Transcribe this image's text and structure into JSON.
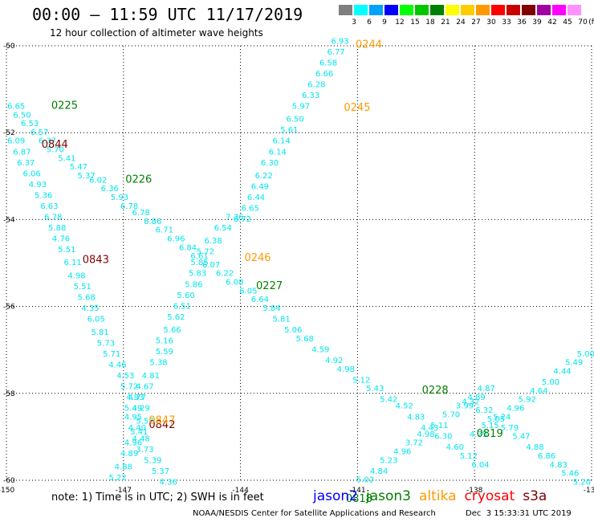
{
  "header": {
    "title": "00:00 – 11:59 UTC 11/17/2019",
    "subtitle": "12 hour collection of altimeter wave heights"
  },
  "legend": {
    "unit": "(ft)",
    "bins": [
      {
        "label": "3",
        "color": "#7f7f7f"
      },
      {
        "label": "6",
        "color": "#00ffff"
      },
      {
        "label": "9",
        "color": "#00a0ff"
      },
      {
        "label": "12",
        "color": "#0000ff"
      },
      {
        "label": "15",
        "color": "#00ff00"
      },
      {
        "label": "18",
        "color": "#00c800"
      },
      {
        "label": "21",
        "color": "#008000"
      },
      {
        "label": "24",
        "color": "#ffff00"
      },
      {
        "label": "27",
        "color": "#ffcc00"
      },
      {
        "label": "30",
        "color": "#ff9900"
      },
      {
        "label": "33",
        "color": "#ff0000"
      },
      {
        "label": "36",
        "color": "#c80000"
      },
      {
        "label": "39",
        "color": "#800000"
      },
      {
        "label": "42",
        "color": "#a000a0"
      },
      {
        "label": "45",
        "color": "#ff00ff"
      },
      {
        "label": "70",
        "color": "#ff90ff"
      }
    ]
  },
  "map": {
    "lon_ticks": [
      "-150",
      "-147",
      "-144",
      "-141",
      "-138",
      "-135"
    ],
    "lat_ticks": [
      "-50",
      "-52",
      "-54",
      "-56",
      "-58",
      "-60"
    ],
    "lon_range": [
      -150,
      -135
    ],
    "lat_range": [
      -60,
      -50
    ],
    "grid": "dotted"
  },
  "colors": {
    "swh": "#00e5ee",
    "jason2": "#0000ff",
    "jason3": "#008000",
    "altika": "#ff9900",
    "cryosat": "#ff0000",
    "s3a": "#800000"
  },
  "tracks": [
    {
      "name": "track-a",
      "points": [
        {
          "lon": -144.15,
          "lat": -54.0,
          "v": "7.36"
        },
        {
          "lon": -144.45,
          "lat": -54.25,
          "v": "6.54"
        },
        {
          "lon": -144.7,
          "lat": -54.55,
          "v": "6.38"
        },
        {
          "lon": -144.9,
          "lat": -54.8,
          "v": "5.72"
        },
        {
          "lon": -145.05,
          "lat": -55.05,
          "v": "5.85"
        },
        {
          "lon": -145.1,
          "lat": -55.3,
          "v": "5.83"
        },
        {
          "lon": -145.2,
          "lat": -55.55,
          "v": "5.86"
        },
        {
          "lon": -145.4,
          "lat": -55.8,
          "v": "5.60"
        },
        {
          "lon": -145.5,
          "lat": -56.05,
          "v": "6.51"
        },
        {
          "lon": -145.65,
          "lat": -56.3,
          "v": "5.62"
        },
        {
          "lon": -145.75,
          "lat": -56.6,
          "v": "5.66"
        },
        {
          "lon": -145.95,
          "lat": -56.85,
          "v": "5.16"
        },
        {
          "lon": -145.95,
          "lat": -57.1,
          "v": "5.59"
        },
        {
          "lon": -146.1,
          "lat": -57.35,
          "v": "5.38"
        },
        {
          "lon": -146.3,
          "lat": -57.65,
          "v": "4.81"
        },
        {
          "lon": -146.45,
          "lat": -57.9,
          "v": "4.67"
        },
        {
          "lon": -146.65,
          "lat": -58.15,
          "v": "4.77"
        },
        {
          "lon": -146.75,
          "lat": -58.4,
          "v": "5.49"
        },
        {
          "lon": -146.75,
          "lat": -58.6,
          "v": "4.95"
        },
        {
          "lon": -146.65,
          "lat": -58.85,
          "v": "4.40"
        },
        {
          "lon": -146.55,
          "lat": -59.1,
          "v": "4.48"
        },
        {
          "lon": -146.45,
          "lat": -59.35,
          "v": "3.73"
        },
        {
          "lon": -146.25,
          "lat": -59.6,
          "v": "5.39"
        },
        {
          "lon": -146.05,
          "lat": -59.85,
          "v": "5.37"
        },
        {
          "lon": -145.85,
          "lat": -60.1,
          "v": "4.36"
        }
      ]
    },
    {
      "name": "track-b",
      "points": [
        {
          "lon": -141.45,
          "lat": -49.95,
          "v": "6.93"
        },
        {
          "lon": -141.55,
          "lat": -50.2,
          "v": "6.77"
        },
        {
          "lon": -141.75,
          "lat": -50.45,
          "v": "6.58"
        },
        {
          "lon": -141.85,
          "lat": -50.7,
          "v": "6.66"
        },
        {
          "lon": -142.05,
          "lat": -50.95,
          "v": "6.28"
        },
        {
          "lon": -142.2,
          "lat": -51.2,
          "v": "6.33"
        },
        {
          "lon": -142.45,
          "lat": -51.45,
          "v": "5.97"
        },
        {
          "lon": -142.6,
          "lat": -51.75,
          "v": "6.50"
        },
        {
          "lon": -142.75,
          "lat": -52.0,
          "v": "5.61"
        },
        {
          "lon": -142.95,
          "lat": -52.25,
          "v": "6.14"
        },
        {
          "lon": -143.05,
          "lat": -52.5,
          "v": "6.14"
        },
        {
          "lon": -143.25,
          "lat": -52.75,
          "v": "6.30"
        },
        {
          "lon": -143.4,
          "lat": -53.05,
          "v": "6.22"
        },
        {
          "lon": -143.5,
          "lat": -53.3,
          "v": "6.49"
        },
        {
          "lon": -143.6,
          "lat": -53.55,
          "v": "6.44"
        },
        {
          "lon": -143.75,
          "lat": -53.8,
          "v": "6.65"
        },
        {
          "lon": -143.95,
          "lat": -54.05,
          "v": "6.72"
        }
      ]
    },
    {
      "name": "track-c",
      "points": [
        {
          "lon": -149.75,
          "lat": -51.45,
          "v": "6.65"
        },
        {
          "lon": -149.6,
          "lat": -51.65,
          "v": "6.50"
        },
        {
          "lon": -149.4,
          "lat": -51.85,
          "v": "6.53"
        },
        {
          "lon": -149.15,
          "lat": -52.05,
          "v": "6.57"
        },
        {
          "lon": -148.95,
          "lat": -52.25,
          "v": "6.37"
        },
        {
          "lon": -148.75,
          "lat": -52.45,
          "v": "5.70"
        },
        {
          "lon": -148.45,
          "lat": -52.65,
          "v": "5.41"
        },
        {
          "lon": -148.15,
          "lat": -52.85,
          "v": "5.47"
        },
        {
          "lon": -147.95,
          "lat": -53.05,
          "v": "5.37"
        },
        {
          "lon": -147.65,
          "lat": -53.15,
          "v": "6.02"
        },
        {
          "lon": -147.35,
          "lat": -53.35,
          "v": "6.36"
        },
        {
          "lon": -147.1,
          "lat": -53.55,
          "v": "5.93"
        },
        {
          "lon": -146.85,
          "lat": -53.75,
          "v": "6.78"
        },
        {
          "lon": -146.55,
          "lat": -53.9,
          "v": "6.78"
        },
        {
          "lon": -146.25,
          "lat": -54.1,
          "v": "6.86"
        },
        {
          "lon": -145.95,
          "lat": -54.3,
          "v": "6.71"
        },
        {
          "lon": -145.65,
          "lat": -54.5,
          "v": "6.96"
        },
        {
          "lon": -145.35,
          "lat": -54.7,
          "v": "6.84"
        },
        {
          "lon": -145.05,
          "lat": -54.9,
          "v": "6.61"
        },
        {
          "lon": -144.75,
          "lat": -55.1,
          "v": "6.07"
        },
        {
          "lon": -144.4,
          "lat": -55.3,
          "v": "6.22"
        },
        {
          "lon": -144.15,
          "lat": -55.5,
          "v": "6.08"
        },
        {
          "lon": -143.8,
          "lat": -55.7,
          "v": "6.05"
        },
        {
          "lon": -143.5,
          "lat": -55.9,
          "v": "6.64"
        },
        {
          "lon": -143.2,
          "lat": -56.1,
          "v": "5.84"
        },
        {
          "lon": -142.95,
          "lat": -56.35,
          "v": "5.81"
        },
        {
          "lon": -142.65,
          "lat": -56.6,
          "v": "5.06"
        },
        {
          "lon": -142.35,
          "lat": -56.8,
          "v": "5.68"
        },
        {
          "lon": -141.95,
          "lat": -57.05,
          "v": "4.59"
        },
        {
          "lon": -141.6,
          "lat": -57.3,
          "v": "4.92"
        },
        {
          "lon": -141.3,
          "lat": -57.5,
          "v": "4.98"
        },
        {
          "lon": -140.9,
          "lat": -57.75,
          "v": "5.12"
        },
        {
          "lon": -140.55,
          "lat": -57.95,
          "v": "5.43"
        },
        {
          "lon": -140.2,
          "lat": -58.2,
          "v": "5.42"
        },
        {
          "lon": -139.8,
          "lat": -58.35,
          "v": "4.52"
        },
        {
          "lon": -139.5,
          "lat": -58.6,
          "v": "4.83"
        },
        {
          "lon": -139.15,
          "lat": -58.85,
          "v": "4.43"
        },
        {
          "lon": -138.8,
          "lat": -59.05,
          "v": "6.30"
        },
        {
          "lon": -138.5,
          "lat": -59.3,
          "v": "4.60"
        },
        {
          "lon": -138.15,
          "lat": -59.5,
          "v": "5.12"
        },
        {
          "lon": -137.85,
          "lat": -59.7,
          "v": "6.04"
        }
      ]
    },
    {
      "name": "track-d",
      "points": [
        {
          "lon": -149.75,
          "lat": -52.25,
          "v": "6.09"
        },
        {
          "lon": -149.6,
          "lat": -52.5,
          "v": "6.87"
        },
        {
          "lon": -149.5,
          "lat": -52.75,
          "v": "6.37"
        },
        {
          "lon": -149.35,
          "lat": -53.0,
          "v": "6.06"
        },
        {
          "lon": -149.2,
          "lat": -53.25,
          "v": "4.93"
        },
        {
          "lon": -149.05,
          "lat": -53.5,
          "v": "5.36"
        },
        {
          "lon": -148.9,
          "lat": -53.75,
          "v": "6.63"
        },
        {
          "lon": -148.8,
          "lat": -54.0,
          "v": "6.78"
        },
        {
          "lon": -148.7,
          "lat": -54.25,
          "v": "5.88"
        },
        {
          "lon": -148.6,
          "lat": -54.5,
          "v": "4.76"
        },
        {
          "lon": -148.45,
          "lat": -54.75,
          "v": "5.51"
        },
        {
          "lon": -148.3,
          "lat": -55.05,
          "v": "6.11"
        },
        {
          "lon": -148.2,
          "lat": -55.35,
          "v": "4.98"
        },
        {
          "lon": -148.05,
          "lat": -55.6,
          "v": "5.51"
        },
        {
          "lon": -147.95,
          "lat": -55.85,
          "v": "5.68"
        },
        {
          "lon": -147.85,
          "lat": -56.1,
          "v": "4.35"
        },
        {
          "lon": -147.7,
          "lat": -56.35,
          "v": "6.05"
        },
        {
          "lon": -147.6,
          "lat": -56.65,
          "v": "5.81"
        },
        {
          "lon": -147.45,
          "lat": -56.9,
          "v": "5.73"
        },
        {
          "lon": -147.3,
          "lat": -57.15,
          "v": "5.71"
        },
        {
          "lon": -147.15,
          "lat": -57.4,
          "v": "4.46"
        },
        {
          "lon": -146.95,
          "lat": -57.65,
          "v": "4.53"
        },
        {
          "lon": -146.85,
          "lat": -57.9,
          "v": "5.72"
        },
        {
          "lon": -146.7,
          "lat": -58.15,
          "v": "4.93"
        },
        {
          "lon": -146.55,
          "lat": -58.4,
          "v": "4.29"
        },
        {
          "lon": -146.45,
          "lat": -58.7,
          "v": "5.57"
        },
        {
          "lon": -146.6,
          "lat": -58.95,
          "v": "5.41"
        },
        {
          "lon": -146.75,
          "lat": -59.2,
          "v": "4.96"
        },
        {
          "lon": -146.85,
          "lat": -59.45,
          "v": "4.89"
        },
        {
          "lon": -147.0,
          "lat": -59.75,
          "v": "4.88"
        },
        {
          "lon": -147.15,
          "lat": -60.0,
          "v": "5.22"
        },
        {
          "lon": -147.25,
          "lat": -60.25,
          "v": "5.11"
        },
        {
          "lon": -147.4,
          "lat": -60.55,
          "v": "5.03"
        }
      ]
    },
    {
      "name": "track-e",
      "points": [
        {
          "lon": -137.9,
          "lat": -59.0,
          "v": "4.75"
        },
        {
          "lon": -137.6,
          "lat": -58.8,
          "v": "5.15"
        },
        {
          "lon": -137.3,
          "lat": -58.6,
          "v": "5.24"
        },
        {
          "lon": -136.95,
          "lat": -58.4,
          "v": "4.96"
        },
        {
          "lon": -136.65,
          "lat": -58.2,
          "v": "5.92"
        },
        {
          "lon": -136.35,
          "lat": -58.0,
          "v": "4.64"
        },
        {
          "lon": -136.05,
          "lat": -57.8,
          "v": "5.00"
        },
        {
          "lon": -135.75,
          "lat": -57.55,
          "v": "4.44"
        },
        {
          "lon": -135.45,
          "lat": -57.35,
          "v": "5.49"
        },
        {
          "lon": -135.15,
          "lat": -57.15,
          "v": "5.00"
        },
        {
          "lon": -134.85,
          "lat": -56.95,
          "v": "5.33"
        },
        {
          "lon": -134.55,
          "lat": -56.75,
          "v": "4.74"
        },
        {
          "lon": -134.4,
          "lat": -56.55,
          "v": "5"
        }
      ]
    },
    {
      "name": "track-f",
      "points": [
        {
          "lon": -141.45,
          "lat": -60.45,
          "v": "4.94"
        },
        {
          "lon": -141.1,
          "lat": -60.25,
          "v": "5.27"
        },
        {
          "lon": -140.8,
          "lat": -60.05,
          "v": "5.02"
        },
        {
          "lon": -140.45,
          "lat": -59.85,
          "v": "4.84"
        },
        {
          "lon": -140.2,
          "lat": -59.6,
          "v": "5.23"
        },
        {
          "lon": -139.85,
          "lat": -59.4,
          "v": "4.96"
        },
        {
          "lon": -139.55,
          "lat": -59.2,
          "v": "3.72"
        },
        {
          "lon": -139.25,
          "lat": -59.0,
          "v": "4.98"
        },
        {
          "lon": -138.9,
          "lat": -58.8,
          "v": "5.11"
        },
        {
          "lon": -138.6,
          "lat": -58.55,
          "v": "5.70"
        },
        {
          "lon": -138.25,
          "lat": -58.35,
          "v": "3.99"
        },
        {
          "lon": -137.95,
          "lat": -58.15,
          "v": "4.89"
        },
        {
          "lon": -137.7,
          "lat": -57.95,
          "v": "4.87"
        }
      ]
    },
    {
      "name": "track-g",
      "points": [
        {
          "lon": -138.1,
          "lat": -58.25,
          "v": "4.32"
        },
        {
          "lon": -137.75,
          "lat": -58.45,
          "v": "6.32"
        },
        {
          "lon": -137.45,
          "lat": -58.65,
          "v": "5.05"
        },
        {
          "lon": -137.1,
          "lat": -58.85,
          "v": "5.79"
        },
        {
          "lon": -136.8,
          "lat": -59.05,
          "v": "5.47"
        },
        {
          "lon": -136.45,
          "lat": -59.3,
          "v": "4.88"
        },
        {
          "lon": -136.15,
          "lat": -59.5,
          "v": "6.86"
        },
        {
          "lon": -135.85,
          "lat": -59.7,
          "v": "4.83"
        },
        {
          "lon": -135.55,
          "lat": -59.9,
          "v": "5.46"
        },
        {
          "lon": -135.25,
          "lat": -60.1,
          "v": "5.20"
        },
        {
          "lon": -134.9,
          "lat": -60.3,
          "v": "5.7"
        }
      ]
    }
  ],
  "time_labels": [
    {
      "lon": -141.05,
      "lat": -50.05,
      "text": "0244",
      "sat": "altika"
    },
    {
      "lon": -141.35,
      "lat": -51.5,
      "text": "0245",
      "sat": "altika"
    },
    {
      "lon": -143.9,
      "lat": -54.95,
      "text": "0246",
      "sat": "altika"
    },
    {
      "lon": -148.85,
      "lat": -51.45,
      "text": "0225",
      "sat": "jason3"
    },
    {
      "lon": -146.95,
      "lat": -53.15,
      "text": "0226",
      "sat": "jason3"
    },
    {
      "lon": -143.6,
      "lat": -55.6,
      "text": "0227",
      "sat": "jason3"
    },
    {
      "lon": -139.35,
      "lat": -58.0,
      "text": "0228",
      "sat": "jason3"
    },
    {
      "lon": -149.1,
      "lat": -52.35,
      "text": "0844",
      "sat": "s3a"
    },
    {
      "lon": -148.05,
      "lat": -55.0,
      "text": "0843",
      "sat": "s3a"
    },
    {
      "lon": -146.35,
      "lat": -58.8,
      "text": "0842",
      "sat": "s3a"
    },
    {
      "lon": -146.35,
      "lat": -58.7,
      "text": "0847",
      "sat": "altika"
    },
    {
      "lon": -137.95,
      "lat": -59.0,
      "text": "0819",
      "sat": "jason3"
    },
    {
      "lon": -141.3,
      "lat": -60.5,
      "text": "0818",
      "sat": "jason3"
    }
  ],
  "footer": {
    "note": "note: 1) Time is in UTC; 2) SWH is in feet",
    "satellites": [
      {
        "name": "jason2",
        "key": "jason2"
      },
      {
        "name": "jason3",
        "key": "jason3"
      },
      {
        "name": "altika",
        "key": "altika"
      },
      {
        "name": "cryosat",
        "key": "cryosat"
      },
      {
        "name": "s3a",
        "key": "s3a"
      }
    ],
    "credit": "NOAA/NESDIS Center for Satellite Applications and Research",
    "generated": "Dec  3 15:33:31 UTC 2019"
  }
}
